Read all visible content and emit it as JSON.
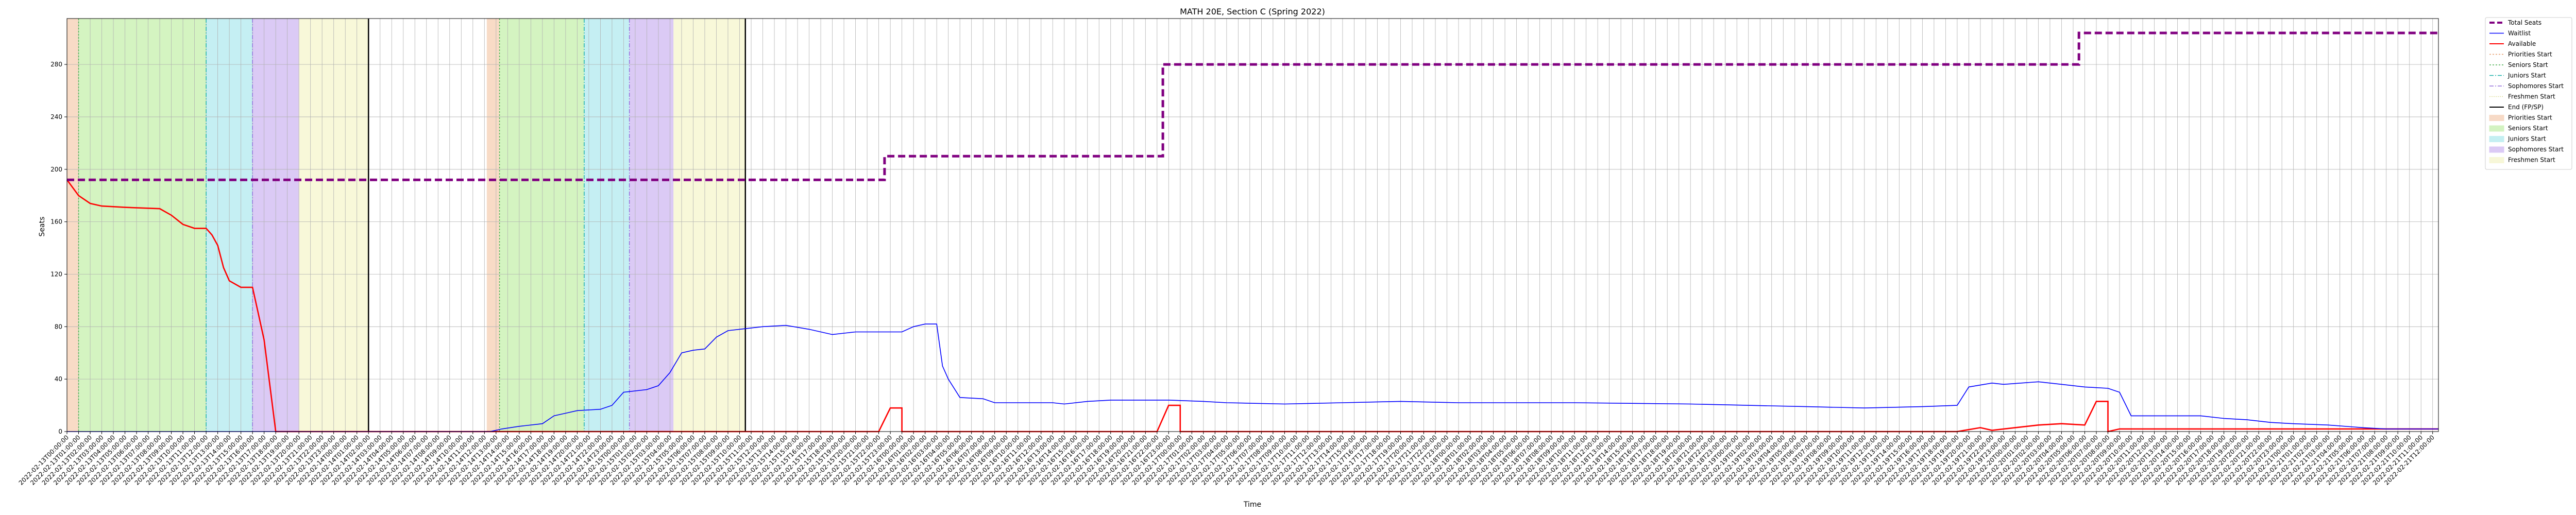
{
  "chart_data": {
    "type": "line",
    "title": "MATH 20E, Section C (Spring 2022)",
    "xlabel": "Time",
    "ylabel": "Seats",
    "ylim": [
      0,
      315
    ],
    "yticks": [
      0,
      40,
      80,
      120,
      160,
      200,
      240,
      280
    ],
    "grid": true,
    "legend_position": "outside-right",
    "x_ticks_rotated": true,
    "x_tick_count": 205,
    "colors": {
      "total": "#800080",
      "waitlist": "#0000ff",
      "available": "#ff0000",
      "priorities": "#f4c7a8",
      "seniors": "#bdeea0",
      "juniors": "#a6e7ec",
      "sophomores": "#c8aef0",
      "freshmen": "#f4f4c4",
      "end": "#000000"
    },
    "legend": [
      {
        "label": "Total Seats",
        "kind": "line",
        "color": "#800080",
        "dash": "10,5",
        "width": 4
      },
      {
        "label": "Waitlist",
        "kind": "line",
        "color": "#0000ff",
        "dash": "",
        "width": 1.5
      },
      {
        "label": "Available",
        "kind": "line",
        "color": "#ff0000",
        "dash": "",
        "width": 2
      },
      {
        "label": "Priorities Start",
        "kind": "vline",
        "color": "#e8a070",
        "dash": "3,3",
        "width": 1.5
      },
      {
        "label": "Seniors Start",
        "kind": "vline",
        "color": "#4caf50",
        "dash": "3,3",
        "width": 1.5
      },
      {
        "label": "Juniors Start",
        "kind": "vline",
        "color": "#20b2aa",
        "dash": "8,3,2,3",
        "width": 1.5
      },
      {
        "label": "Sophomores Start",
        "kind": "vline",
        "color": "#9370db",
        "dash": "8,3,2,3",
        "width": 1.5
      },
      {
        "label": "Freshmen Start",
        "kind": "vline",
        "color": "#e0e0a0",
        "dash": "2,2",
        "width": 1.5
      },
      {
        "label": "End (FP/SP)",
        "kind": "line",
        "color": "#000000",
        "dash": "",
        "width": 2
      },
      {
        "label": "Priorities Start",
        "kind": "patch",
        "color": "#f4c7a8"
      },
      {
        "label": "Seniors Start",
        "kind": "patch",
        "color": "#bdeea0"
      },
      {
        "label": "Juniors Start",
        "kind": "patch",
        "color": "#a6e7ec"
      },
      {
        "label": "Sophomores Start",
        "kind": "patch",
        "color": "#c8aef0"
      },
      {
        "label": "Freshmen Start",
        "kind": "patch",
        "color": "#f4f4c4"
      }
    ],
    "spans": [
      {
        "phase": "priorities",
        "start": 0.0,
        "end": 1.0,
        "color": "#f4c7a8"
      },
      {
        "phase": "seniors",
        "start": 1.0,
        "end": 12.0,
        "color": "#bdeea0"
      },
      {
        "phase": "juniors",
        "start": 12.0,
        "end": 16.0,
        "color": "#a6e7ec"
      },
      {
        "phase": "sophomores",
        "start": 16.0,
        "end": 20.0,
        "color": "#c8aef0"
      },
      {
        "phase": "freshmen",
        "start": 20.0,
        "end": 26.0,
        "color": "#f4f4c4"
      },
      {
        "phase": "priorities",
        "start": 36.2,
        "end": 37.3,
        "color": "#f4c7a8"
      },
      {
        "phase": "seniors",
        "start": 37.3,
        "end": 44.6,
        "color": "#bdeea0"
      },
      {
        "phase": "juniors",
        "start": 44.6,
        "end": 48.5,
        "color": "#a6e7ec"
      },
      {
        "phase": "sophomores",
        "start": 48.5,
        "end": 52.3,
        "color": "#c8aef0"
      },
      {
        "phase": "freshmen",
        "start": 52.3,
        "end": 58.5,
        "color": "#f4f4c4"
      }
    ],
    "phase_lines": [
      {
        "x": 1.0,
        "color": "#4caf50",
        "dash": "3,3"
      },
      {
        "x": 12.0,
        "color": "#20b2aa",
        "dash": "8,3,2,3"
      },
      {
        "x": 16.0,
        "color": "#9370db",
        "dash": "8,3,2,3"
      },
      {
        "x": 37.3,
        "color": "#4caf50",
        "dash": "3,3"
      },
      {
        "x": 44.6,
        "color": "#20b2aa",
        "dash": "8,3,2,3"
      },
      {
        "x": 48.5,
        "color": "#9370db",
        "dash": "8,3,2,3"
      }
    ],
    "end_lines": [
      26.0,
      58.5
    ],
    "series": [
      {
        "name": "Total Seats",
        "step": true,
        "points": [
          [
            0,
            192
          ],
          [
            70.5,
            192
          ],
          [
            70.5,
            210
          ],
          [
            94.5,
            210
          ],
          [
            94.5,
            280
          ],
          [
            173.5,
            280
          ],
          [
            173.5,
            304
          ],
          [
            204.5,
            304
          ]
        ]
      },
      {
        "name": "Waitlist",
        "step": false,
        "points": [
          [
            0,
            0
          ],
          [
            36.5,
            0
          ],
          [
            37.5,
            2
          ],
          [
            39,
            4
          ],
          [
            41,
            6
          ],
          [
            42,
            12
          ],
          [
            43,
            14
          ],
          [
            44,
            16
          ],
          [
            46,
            17
          ],
          [
            47,
            20
          ],
          [
            48,
            30
          ],
          [
            50,
            32
          ],
          [
            51,
            35
          ],
          [
            52,
            45
          ],
          [
            53,
            60
          ],
          [
            54,
            62
          ],
          [
            55,
            63
          ],
          [
            56,
            72
          ],
          [
            57,
            77
          ],
          [
            58,
            78
          ],
          [
            60,
            80
          ],
          [
            62,
            81
          ],
          [
            64,
            78
          ],
          [
            65,
            76
          ],
          [
            66,
            74
          ],
          [
            67,
            75
          ],
          [
            68,
            76
          ],
          [
            72,
            76
          ],
          [
            73,
            80
          ],
          [
            74,
            82
          ],
          [
            75,
            82
          ],
          [
            75.5,
            50
          ],
          [
            76,
            40
          ],
          [
            77,
            26
          ],
          [
            79,
            25
          ],
          [
            80,
            22
          ],
          [
            85,
            22
          ],
          [
            86,
            21
          ],
          [
            88,
            23
          ],
          [
            90,
            24
          ],
          [
            95,
            24
          ],
          [
            98,
            23
          ],
          [
            100,
            22
          ],
          [
            105,
            21
          ],
          [
            110,
            22
          ],
          [
            115,
            23
          ],
          [
            120,
            22
          ],
          [
            130,
            22
          ],
          [
            140,
            21
          ],
          [
            145,
            20
          ],
          [
            150,
            19
          ],
          [
            155,
            18
          ],
          [
            160,
            19
          ],
          [
            163,
            20
          ],
          [
            164,
            34
          ],
          [
            166,
            37
          ],
          [
            167,
            36
          ],
          [
            170,
            38
          ],
          [
            172,
            36
          ],
          [
            174,
            34
          ],
          [
            176,
            33
          ],
          [
            177,
            30
          ],
          [
            178,
            12
          ],
          [
            184,
            12
          ],
          [
            186,
            10
          ],
          [
            188,
            9
          ],
          [
            190,
            7
          ],
          [
            192,
            6
          ],
          [
            195,
            5
          ],
          [
            198,
            3
          ],
          [
            200,
            2
          ],
          [
            203,
            2
          ],
          [
            204.5,
            2
          ]
        ]
      },
      {
        "name": "Available",
        "step": false,
        "points": [
          [
            0,
            192
          ],
          [
            1,
            180
          ],
          [
            2,
            174
          ],
          [
            3,
            172
          ],
          [
            5,
            171
          ],
          [
            8,
            170
          ],
          [
            9,
            165
          ],
          [
            10,
            158
          ],
          [
            11,
            155
          ],
          [
            12,
            155
          ],
          [
            12.5,
            150
          ],
          [
            13,
            142
          ],
          [
            13.5,
            125
          ],
          [
            14,
            115
          ],
          [
            15,
            110
          ],
          [
            16,
            110
          ],
          [
            16.5,
            90
          ],
          [
            17,
            70
          ],
          [
            17.5,
            35
          ],
          [
            18,
            0
          ],
          [
            70,
            0
          ],
          [
            71,
            18
          ],
          [
            72,
            18
          ],
          [
            72,
            0
          ],
          [
            94,
            0
          ],
          [
            95,
            20
          ],
          [
            96,
            20
          ],
          [
            96,
            0
          ],
          [
            163,
            0
          ],
          [
            165,
            3
          ],
          [
            166,
            1
          ],
          [
            168,
            3
          ],
          [
            170,
            5
          ],
          [
            172,
            6
          ],
          [
            174,
            5
          ],
          [
            175,
            23
          ],
          [
            176,
            23
          ],
          [
            176,
            0
          ],
          [
            177,
            2
          ],
          [
            190,
            2
          ],
          [
            204.5,
            2
          ]
        ]
      }
    ],
    "x_tick_labels": [
      "2022-02-13T00:00:00",
      "2022-02-13T01:00:00",
      "2022-02-13T02:00:00",
      "2022-02-13T03:00:00",
      "2022-02-13T04:00:00",
      "2022-02-13T05:00:00",
      "2022-02-13T06:00:00",
      "2022-02-13T07:00:00",
      "2022-02-13T08:00:00",
      "2022-02-13T09:00:00",
      "2022-02-13T10:00:00",
      "2022-02-13T11:00:00",
      "2022-02-13T12:00:00",
      "2022-02-13T13:00:00",
      "2022-02-13T14:00:00",
      "2022-02-13T15:00:00",
      "2022-02-13T16:00:00",
      "2022-02-13T17:00:00",
      "2022-02-13T18:00:00",
      "2022-02-13T19:00:00",
      "2022-02-13T20:00:00",
      "2022-02-13T21:00:00",
      "2022-02-13T22:00:00",
      "2022-02-13T23:00:00",
      "2022-02-14T00:00:00",
      "2022-02-14T01:00:00",
      "2022-02-14T02:00:00",
      "2022-02-14T03:00:00",
      "2022-02-14T04:00:00",
      "2022-02-14T05:00:00",
      "2022-02-14T06:00:00",
      "2022-02-14T07:00:00",
      "2022-02-14T08:00:00",
      "2022-02-14T09:00:00",
      "2022-02-14T10:00:00",
      "2022-02-14T11:00:00",
      "2022-02-14T12:00:00",
      "2022-02-14T13:00:00",
      "2022-02-14T14:00:00",
      "2022-02-14T15:00:00",
      "2022-02-14T16:00:00",
      "2022-02-14T17:00:00",
      "2022-02-14T18:00:00",
      "2022-02-14T19:00:00",
      "2022-02-14T20:00:00",
      "2022-02-14T21:00:00",
      "2022-02-14T22:00:00",
      "2022-02-14T23:00:00",
      "2022-02-15T00:00:00",
      "2022-02-15T01:00:00",
      "2022-02-15T02:00:00",
      "2022-02-15T03:00:00",
      "2022-02-15T04:00:00",
      "2022-02-15T05:00:00",
      "2022-02-15T06:00:00",
      "2022-02-15T07:00:00",
      "2022-02-15T08:00:00",
      "2022-02-15T09:00:00",
      "2022-02-15T10:00:00",
      "2022-02-15T11:00:00",
      "2022-02-15T12:00:00",
      "2022-02-15T13:00:00",
      "2022-02-15T14:00:00",
      "2022-02-15T15:00:00",
      "2022-02-15T16:00:00",
      "2022-02-15T17:00:00",
      "2022-02-15T18:00:00",
      "2022-02-15T19:00:00",
      "2022-02-15T20:00:00",
      "2022-02-15T21:00:00",
      "2022-02-15T22:00:00",
      "2022-02-15T23:00:00",
      "2022-02-16T00:00:00",
      "2022-02-16T01:00:00",
      "2022-02-16T02:00:00",
      "2022-02-16T03:00:00",
      "2022-02-16T04:00:00",
      "2022-02-16T05:00:00",
      "2022-02-16T06:00:00",
      "2022-02-16T07:00:00",
      "2022-02-16T08:00:00",
      "2022-02-16T09:00:00",
      "2022-02-16T10:00:00",
      "2022-02-16T11:00:00",
      "2022-02-16T12:00:00",
      "2022-02-16T13:00:00",
      "2022-02-16T14:00:00",
      "2022-02-16T15:00:00",
      "2022-02-16T16:00:00",
      "2022-02-16T17:00:00",
      "2022-02-16T18:00:00",
      "2022-02-16T19:00:00",
      "2022-02-16T20:00:00",
      "2022-02-16T21:00:00",
      "2022-02-16T22:00:00",
      "2022-02-16T23:00:00",
      "2022-02-17T00:00:00",
      "2022-02-17T01:00:00",
      "2022-02-17T02:00:00",
      "2022-02-17T03:00:00",
      "2022-02-17T04:00:00",
      "2022-02-17T05:00:00",
      "2022-02-17T06:00:00",
      "2022-02-17T07:00:00",
      "2022-02-17T08:00:00",
      "2022-02-17T09:00:00",
      "2022-02-17T10:00:00",
      "2022-02-17T11:00:00",
      "2022-02-17T12:00:00",
      "2022-02-17T13:00:00",
      "2022-02-17T14:00:00",
      "2022-02-17T15:00:00",
      "2022-02-17T16:00:00",
      "2022-02-17T17:00:00",
      "2022-02-17T18:00:00",
      "2022-02-17T19:00:00",
      "2022-02-17T20:00:00",
      "2022-02-17T21:00:00",
      "2022-02-17T22:00:00",
      "2022-02-17T23:00:00",
      "2022-02-18T00:00:00",
      "2022-02-18T01:00:00",
      "2022-02-18T02:00:00",
      "2022-02-18T03:00:00",
      "2022-02-18T04:00:00",
      "2022-02-18T05:00:00",
      "2022-02-18T06:00:00",
      "2022-02-18T07:00:00",
      "2022-02-18T08:00:00",
      "2022-02-18T09:00:00",
      "2022-02-18T10:00:00",
      "2022-02-18T11:00:00",
      "2022-02-18T12:00:00",
      "2022-02-18T13:00:00",
      "2022-02-18T14:00:00",
      "2022-02-18T15:00:00",
      "2022-02-18T16:00:00",
      "2022-02-18T17:00:00",
      "2022-02-18T18:00:00",
      "2022-02-18T19:00:00",
      "2022-02-18T20:00:00",
      "2022-02-18T21:00:00",
      "2022-02-18T22:00:00",
      "2022-02-18T23:00:00",
      "2022-02-19T00:00:00",
      "2022-02-19T01:00:00",
      "2022-02-19T02:00:00",
      "2022-02-19T03:00:00",
      "2022-02-19T04:00:00",
      "2022-02-19T05:00:00",
      "2022-02-19T06:00:00",
      "2022-02-19T07:00:00",
      "2022-02-19T08:00:00",
      "2022-02-19T09:00:00",
      "2022-02-19T10:00:00",
      "2022-02-19T11:00:00",
      "2022-02-19T12:00:00",
      "2022-02-19T13:00:00",
      "2022-02-19T14:00:00",
      "2022-02-19T15:00:00",
      "2022-02-19T16:00:00",
      "2022-02-19T17:00:00",
      "2022-02-19T18:00:00",
      "2022-02-19T19:00:00",
      "2022-02-19T20:00:00",
      "2022-02-19T21:00:00",
      "2022-02-19T22:00:00",
      "2022-02-19T23:00:00",
      "2022-02-20T00:00:00",
      "2022-02-20T01:00:00",
      "2022-02-20T02:00:00",
      "2022-02-20T03:00:00",
      "2022-02-20T04:00:00",
      "2022-02-20T05:00:00",
      "2022-02-20T06:00:00",
      "2022-02-20T07:00:00",
      "2022-02-20T08:00:00",
      "2022-02-20T09:00:00",
      "2022-02-20T10:00:00",
      "2022-02-20T11:00:00",
      "2022-02-20T12:00:00",
      "2022-02-20T13:00:00",
      "2022-02-20T14:00:00",
      "2022-02-20T15:00:00",
      "2022-02-20T16:00:00",
      "2022-02-20T17:00:00",
      "2022-02-20T18:00:00",
      "2022-02-20T19:00:00",
      "2022-02-20T20:00:00",
      "2022-02-20T21:00:00",
      "2022-02-20T22:00:00",
      "2022-02-20T23:00:00",
      "2022-02-21T00:00:00",
      "2022-02-21T01:00:00",
      "2022-02-21T02:00:00",
      "2022-02-21T03:00:00",
      "2022-02-21T04:00:00",
      "2022-02-21T05:00:00",
      "2022-02-21T06:00:00",
      "2022-02-21T07:00:00",
      "2022-02-21T08:00:00",
      "2022-02-21T09:00:00",
      "2022-02-21T10:00:00",
      "2022-02-21T11:00:00",
      "2022-02-21T12:00:00"
    ]
  }
}
